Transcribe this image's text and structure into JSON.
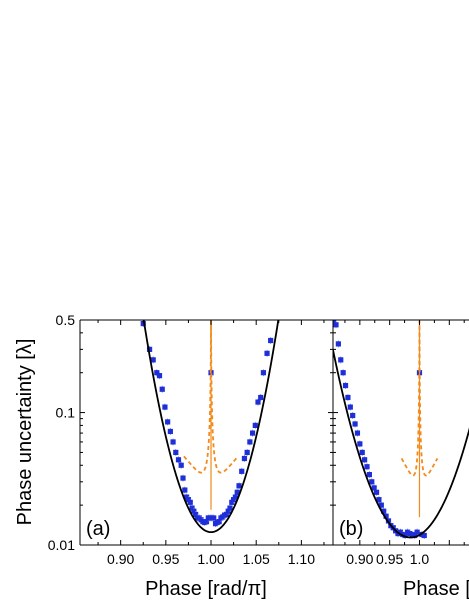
{
  "chart_data": [
    {
      "type": "scatter",
      "panel_label": "(a)",
      "xlabel": "Phase [rad/π]",
      "ylabel": "Phase uncertainty [λ]",
      "yscale": "log",
      "xlim": [
        0.855,
        1.135
      ],
      "ylim": [
        0.01,
        0.5
      ],
      "xticks": [
        0.9,
        0.95,
        1.0,
        1.05,
        1.1
      ],
      "xtick_labels": [
        "0.90",
        "0.95",
        "1.00",
        "1.05",
        "1.10"
      ],
      "yticks": [
        0.01,
        0.1,
        0.5
      ],
      "ytick_labels": [
        "0.01",
        "0.1",
        "0.5"
      ],
      "grid": false,
      "legend": "none",
      "colors": {
        "points": "#1f2fd8",
        "fit": "#000000",
        "cusp": "#f28a1c",
        "axes": "#000000"
      },
      "series": [
        {
          "kind": "points",
          "x": [
            0.925,
            0.932,
            0.936,
            0.94,
            0.943,
            0.946,
            0.949,
            0.952,
            0.955,
            0.958,
            0.961,
            0.964,
            0.967,
            0.969,
            0.971,
            0.973,
            0.975,
            0.977,
            0.979,
            0.981,
            0.983,
            0.985,
            0.987,
            0.989,
            0.991,
            0.993,
            0.995,
            0.997,
            0.999,
            1.0,
            1.001,
            1.003,
            1.005,
            1.007,
            1.009,
            1.011,
            1.013,
            1.015,
            1.017,
            1.019,
            1.021,
            1.023,
            1.025,
            1.027,
            1.029,
            1.031,
            1.034,
            1.037,
            1.04,
            1.043,
            1.046,
            1.049,
            1.052,
            1.055,
            1.058,
            1.062,
            1.066
          ],
          "y": [
            0.47,
            0.3,
            0.25,
            0.2,
            0.19,
            0.15,
            0.11,
            0.085,
            0.072,
            0.06,
            0.05,
            0.044,
            0.04,
            0.032,
            0.026,
            0.023,
            0.022,
            0.021,
            0.019,
            0.018,
            0.017,
            0.016,
            0.016,
            0.0155,
            0.015,
            0.0148,
            0.015,
            0.016,
            0.016,
            0.2,
            0.016,
            0.016,
            0.0145,
            0.0148,
            0.015,
            0.016,
            0.0163,
            0.0168,
            0.017,
            0.018,
            0.019,
            0.021,
            0.022,
            0.023,
            0.025,
            0.028,
            0.036,
            0.045,
            0.05,
            0.06,
            0.07,
            0.08,
            0.12,
            0.13,
            0.2,
            0.28,
            0.35
          ]
        },
        {
          "kind": "fit_curve",
          "model": "parabola",
          "center": 1.0,
          "min_y": 0.0125
        },
        {
          "kind": "cusp_curve",
          "center": 1.0,
          "base_y": 0.0142
        }
      ]
    },
    {
      "type": "scatter",
      "panel_label": "(b)",
      "xlabel": "Phase [",
      "ylabel": "",
      "yscale": "log",
      "xlim": [
        0.855,
        1.135
      ],
      "ylim": [
        0.01,
        0.5
      ],
      "xticks": [
        0.9,
        0.95,
        1.0
      ],
      "xtick_labels": [
        "0.90",
        "0.95",
        "1.0"
      ],
      "grid": false,
      "legend": "none",
      "colors": {
        "points": "#1f2fd8",
        "fit": "#000000",
        "cusp": "#f28a1c",
        "axes": "#000000"
      },
      "series": [
        {
          "kind": "points",
          "x": [
            0.856,
            0.86,
            0.864,
            0.868,
            0.872,
            0.876,
            0.88,
            0.884,
            0.888,
            0.892,
            0.896,
            0.9,
            0.904,
            0.908,
            0.912,
            0.916,
            0.92,
            0.924,
            0.928,
            0.932,
            0.936,
            0.94,
            0.944,
            0.948,
            0.952,
            0.956,
            0.96,
            0.964,
            0.968,
            0.972,
            0.976,
            0.98,
            0.984,
            0.988,
            0.992,
            0.996,
            1.0,
            1.004,
            1.008
          ],
          "y": [
            0.48,
            0.46,
            0.33,
            0.25,
            0.2,
            0.16,
            0.13,
            0.11,
            0.095,
            0.082,
            0.07,
            0.058,
            0.05,
            0.044,
            0.039,
            0.034,
            0.03,
            0.027,
            0.025,
            0.022,
            0.02,
            0.018,
            0.0165,
            0.0152,
            0.014,
            0.0135,
            0.0128,
            0.0122,
            0.0125,
            0.012,
            0.0118,
            0.0125,
            0.0122,
            0.012,
            0.0118,
            0.0125,
            0.2,
            0.012,
            0.0118
          ]
        },
        {
          "kind": "fit_curve",
          "model": "parabola",
          "center": 0.985,
          "min_y": 0.0114
        },
        {
          "kind": "cusp_curve",
          "center": 1.0,
          "base_y": 0.0125
        }
      ]
    }
  ]
}
